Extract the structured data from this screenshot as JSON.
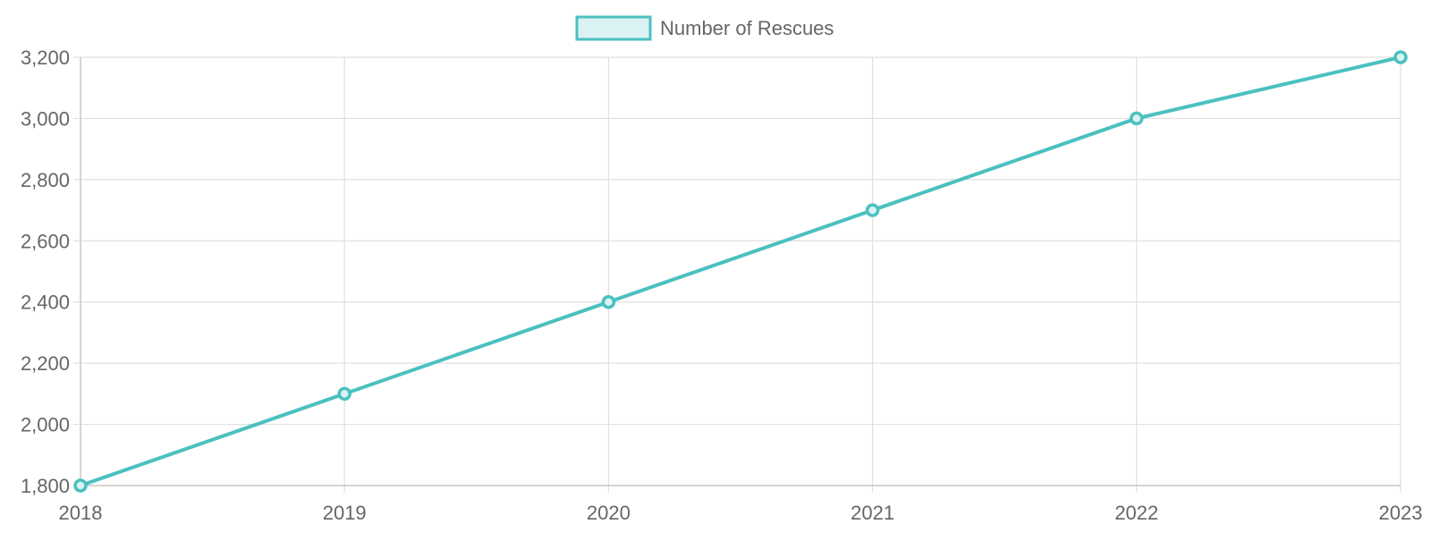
{
  "chart_data": {
    "type": "line",
    "categories": [
      "2018",
      "2019",
      "2020",
      "2021",
      "2022",
      "2023"
    ],
    "series": [
      {
        "name": "Number of Rescues",
        "values": [
          1800,
          2100,
          2400,
          2700,
          3000,
          3200
        ],
        "color": "#4bc0c0",
        "fill_color": "#dbf2f2"
      }
    ],
    "ylim": [
      1800,
      3200
    ],
    "y_ticks": [
      1800,
      2000,
      2200,
      2400,
      2600,
      2800,
      3000,
      3200
    ],
    "y_tick_labels": [
      "1,800",
      "2,000",
      "2,200",
      "2,400",
      "2,600",
      "2,800",
      "3,000",
      "3,200"
    ],
    "grid": true,
    "legend_position": "top-center",
    "grid_color": "#e0e0e0",
    "axis_color": "#c8c8c8",
    "label_color": "#666666"
  }
}
